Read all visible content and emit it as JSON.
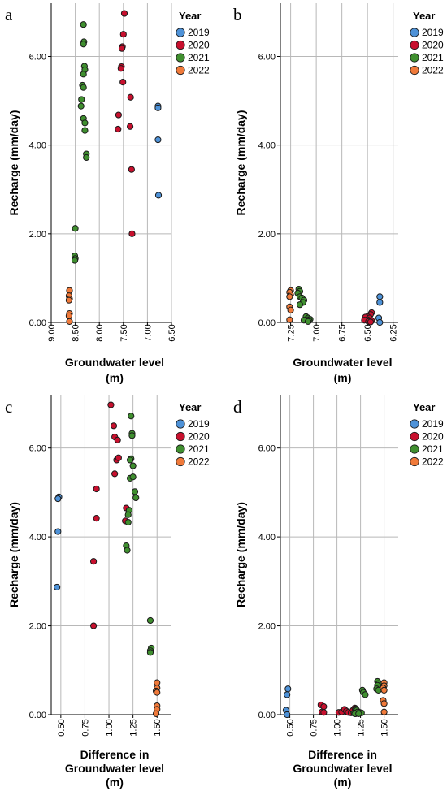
{
  "legend": {
    "title": "Year",
    "entries": [
      {
        "name": "2019",
        "color": "#4e92d8"
      },
      {
        "name": "2020",
        "color": "#c8102e"
      },
      {
        "name": "2021",
        "color": "#3f8f2f"
      },
      {
        "name": "2022",
        "color": "#f07a3a"
      }
    ]
  },
  "chart_data": [
    {
      "panel": "a",
      "type": "scatter",
      "xlabel": "Groundwater level (m)",
      "ylabel": "Recharge (mm/day)",
      "xlim": [
        9.0,
        6.5
      ],
      "x_reversed": true,
      "xticks": [
        "9.00",
        "8.50",
        "8.00",
        "7.50",
        "7.00",
        "6.50"
      ],
      "ylim": [
        0,
        7.2
      ],
      "yticks": [
        "0.00",
        "2.00",
        "4.00",
        "6.00"
      ],
      "grid": true,
      "legend_position": "top-right",
      "series": [
        {
          "name": "2019",
          "points": [
            [
              6.78,
              4.88
            ],
            [
              6.78,
              4.84
            ],
            [
              6.78,
              4.12
            ],
            [
              6.77,
              2.87
            ]
          ]
        },
        {
          "name": "2020",
          "points": [
            [
              7.48,
              6.97
            ],
            [
              7.5,
              6.5
            ],
            [
              7.52,
              6.22
            ],
            [
              7.53,
              6.18
            ],
            [
              7.54,
              5.77
            ],
            [
              7.55,
              5.73
            ],
            [
              7.51,
              5.42
            ],
            [
              7.35,
              5.08
            ],
            [
              7.36,
              4.42
            ],
            [
              7.6,
              4.68
            ],
            [
              7.61,
              4.36
            ],
            [
              7.33,
              3.45
            ],
            [
              7.32,
              2.0
            ]
          ]
        },
        {
          "name": "2021",
          "points": [
            [
              8.33,
              6.72
            ],
            [
              8.32,
              6.33
            ],
            [
              8.33,
              6.28
            ],
            [
              8.31,
              5.78
            ],
            [
              8.3,
              5.7
            ],
            [
              8.33,
              5.6
            ],
            [
              8.35,
              5.35
            ],
            [
              8.33,
              5.3
            ],
            [
              8.37,
              5.03
            ],
            [
              8.38,
              4.88
            ],
            [
              8.33,
              4.6
            ],
            [
              8.3,
              4.5
            ],
            [
              8.3,
              4.33
            ],
            [
              8.27,
              3.8
            ],
            [
              8.27,
              3.72
            ],
            [
              8.5,
              2.12
            ],
            [
              8.51,
              1.5
            ],
            [
              8.5,
              1.44
            ],
            [
              8.51,
              1.4
            ]
          ]
        },
        {
          "name": "2022",
          "points": [
            [
              8.62,
              0.72
            ],
            [
              8.63,
              0.6
            ],
            [
              8.62,
              0.53
            ],
            [
              8.63,
              0.5
            ],
            [
              8.62,
              0.2
            ],
            [
              8.63,
              0.15
            ],
            [
              8.62,
              0.02
            ]
          ]
        }
      ]
    },
    {
      "panel": "b",
      "type": "scatter",
      "xlabel": "Groundwater level (m)",
      "ylabel": "Recharge (mm/day)",
      "xlim": [
        7.35,
        6.2
      ],
      "x_reversed": true,
      "xticks": [
        "7.25",
        "7.00",
        "6.75",
        "6.50",
        "6.25"
      ],
      "ylim": [
        0,
        7.2
      ],
      "yticks": [
        "0.00",
        "2.00",
        "4.00",
        "6.00"
      ],
      "grid": true,
      "legend_position": "top-right",
      "series": [
        {
          "name": "2019",
          "points": [
            [
              6.38,
              0.58
            ],
            [
              6.38,
              0.45
            ],
            [
              6.39,
              0.1
            ],
            [
              6.38,
              0.0
            ]
          ]
        },
        {
          "name": "2020",
          "points": [
            [
              6.46,
              0.22
            ],
            [
              6.47,
              0.18
            ],
            [
              6.5,
              0.13
            ],
            [
              6.52,
              0.12
            ],
            [
              6.48,
              0.1
            ],
            [
              6.5,
              0.06
            ],
            [
              6.53,
              0.05
            ],
            [
              6.46,
              0.04
            ],
            [
              6.49,
              0.02
            ],
            [
              6.47,
              0.01
            ]
          ]
        },
        {
          "name": "2021",
          "points": [
            [
              7.17,
              0.75
            ],
            [
              7.16,
              0.7
            ],
            [
              7.18,
              0.66
            ],
            [
              7.16,
              0.58
            ],
            [
              7.14,
              0.55
            ],
            [
              7.12,
              0.5
            ],
            [
              7.13,
              0.45
            ],
            [
              7.16,
              0.4
            ],
            [
              7.1,
              0.13
            ],
            [
              7.08,
              0.1
            ],
            [
              7.06,
              0.07
            ],
            [
              7.09,
              0.06
            ],
            [
              7.12,
              0.05
            ],
            [
              7.07,
              0.04
            ],
            [
              7.08,
              0.02
            ]
          ]
        },
        {
          "name": "2022",
          "points": [
            [
              7.25,
              0.72
            ],
            [
              7.26,
              0.68
            ],
            [
              7.25,
              0.62
            ],
            [
              7.26,
              0.58
            ],
            [
              7.26,
              0.35
            ],
            [
              7.25,
              0.28
            ],
            [
              7.26,
              0.06
            ]
          ]
        }
      ]
    },
    {
      "panel": "c",
      "type": "scatter",
      "xlabel": "Difference in Groundwater level (m)",
      "ylabel": "Recharge (mm/day)",
      "xlim": [
        0.4,
        1.65
      ],
      "x_reversed": false,
      "xticks": [
        "0.50",
        "0.75",
        "1.00",
        "1.25",
        "1.50"
      ],
      "ylim": [
        0,
        7.2
      ],
      "yticks": [
        "0.00",
        "2.00",
        "4.00",
        "6.00"
      ],
      "grid": true,
      "legend_position": "top-right",
      "series": [
        {
          "name": "2019",
          "points": [
            [
              0.48,
              4.9
            ],
            [
              0.47,
              4.86
            ],
            [
              0.47,
              4.12
            ],
            [
              0.46,
              2.87
            ]
          ]
        },
        {
          "name": "2020",
          "points": [
            [
              1.02,
              6.97
            ],
            [
              1.05,
              6.5
            ],
            [
              1.06,
              6.25
            ],
            [
              1.09,
              6.18
            ],
            [
              1.08,
              5.73
            ],
            [
              1.1,
              5.78
            ],
            [
              1.06,
              5.42
            ],
            [
              0.87,
              5.08
            ],
            [
              0.87,
              4.42
            ],
            [
              1.18,
              4.65
            ],
            [
              1.17,
              4.36
            ],
            [
              0.84,
              3.45
            ],
            [
              0.84,
              2.0
            ]
          ]
        },
        {
          "name": "2021",
          "points": [
            [
              1.23,
              6.72
            ],
            [
              1.24,
              6.33
            ],
            [
              1.24,
              6.28
            ],
            [
              1.23,
              5.76
            ],
            [
              1.22,
              5.73
            ],
            [
              1.25,
              5.6
            ],
            [
              1.22,
              5.32
            ],
            [
              1.25,
              5.35
            ],
            [
              1.27,
              5.02
            ],
            [
              1.28,
              4.88
            ],
            [
              1.21,
              4.6
            ],
            [
              1.2,
              4.5
            ],
            [
              1.2,
              4.33
            ],
            [
              1.18,
              3.8
            ],
            [
              1.19,
              3.7
            ],
            [
              1.43,
              2.12
            ],
            [
              1.44,
              1.5
            ],
            [
              1.43,
              1.44
            ],
            [
              1.43,
              1.4
            ]
          ]
        },
        {
          "name": "2022",
          "points": [
            [
              1.5,
              0.72
            ],
            [
              1.5,
              0.6
            ],
            [
              1.49,
              0.53
            ],
            [
              1.5,
              0.5
            ],
            [
              1.5,
              0.2
            ],
            [
              1.5,
              0.12
            ],
            [
              1.49,
              0.02
            ]
          ]
        }
      ]
    },
    {
      "panel": "d",
      "type": "scatter",
      "xlabel": "Difference in Groundwater level (m)",
      "ylabel": "Recharge (mm/day)",
      "xlim": [
        0.4,
        1.65
      ],
      "x_reversed": false,
      "xticks": [
        "0.50",
        "0.75",
        "1.00",
        "1.25",
        "1.50"
      ],
      "ylim": [
        0,
        7.2
      ],
      "yticks": [
        "0.00",
        "2.00",
        "4.00",
        "6.00"
      ],
      "grid": true,
      "legend_position": "top-right",
      "series": [
        {
          "name": "2019",
          "points": [
            [
              0.48,
              0.58
            ],
            [
              0.47,
              0.45
            ],
            [
              0.46,
              0.1
            ],
            [
              0.47,
              0.0
            ]
          ]
        },
        {
          "name": "2020",
          "points": [
            [
              0.83,
              0.22
            ],
            [
              0.86,
              0.18
            ],
            [
              0.84,
              0.06
            ],
            [
              0.86,
              0.05
            ],
            [
              1.02,
              0.05
            ],
            [
              1.05,
              0.06
            ],
            [
              1.08,
              0.12
            ],
            [
              1.1,
              0.08
            ],
            [
              1.12,
              0.05
            ],
            [
              1.15,
              0.04
            ],
            [
              1.17,
              0.1
            ],
            [
              1.19,
              0.15
            ],
            [
              1.2,
              0.02
            ]
          ]
        },
        {
          "name": "2021",
          "points": [
            [
              1.43,
              0.75
            ],
            [
              1.44,
              0.7
            ],
            [
              1.43,
              0.66
            ],
            [
              1.42,
              0.58
            ],
            [
              1.44,
              0.55
            ],
            [
              1.27,
              0.55
            ],
            [
              1.28,
              0.5
            ],
            [
              1.3,
              0.45
            ],
            [
              1.2,
              0.13
            ],
            [
              1.21,
              0.1
            ],
            [
              1.22,
              0.06
            ],
            [
              1.24,
              0.05
            ],
            [
              1.26,
              0.04
            ],
            [
              1.18,
              0.04
            ],
            [
              1.19,
              0.02
            ],
            [
              1.23,
              0.02
            ]
          ]
        },
        {
          "name": "2022",
          "points": [
            [
              1.5,
              0.72
            ],
            [
              1.5,
              0.65
            ],
            [
              1.49,
              0.6
            ],
            [
              1.5,
              0.55
            ],
            [
              1.49,
              0.32
            ],
            [
              1.5,
              0.25
            ],
            [
              1.5,
              0.06
            ]
          ]
        }
      ]
    }
  ]
}
